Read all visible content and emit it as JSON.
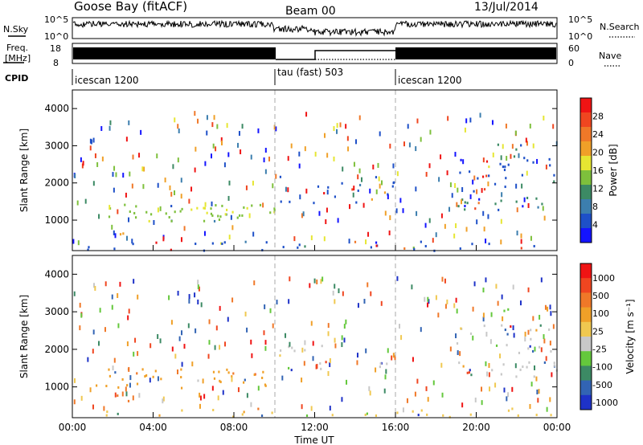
{
  "header": {
    "station": "Goose Bay (fitACF)",
    "beam": "Beam 00",
    "date": "13/Jul/2014"
  },
  "panels": {
    "nsky": {
      "left_label": "N.Sky",
      "right_label": "N.Search",
      "left_ticks": [
        "10^5",
        "10^0"
      ],
      "right_ticks": [
        "10^5",
        "10^0"
      ]
    },
    "freq": {
      "left_label_1": "Freq.",
      "left_label_2": "[MHz]",
      "left_ticks": [
        "18",
        "8"
      ],
      "right_ticks": [
        "60",
        "0"
      ],
      "right_label": "Nave"
    },
    "cpid": {
      "label": "CPID",
      "segments": [
        "icescan 1200",
        "tau (fast) 503",
        "icescan 1200"
      ]
    }
  },
  "chart_data": [
    {
      "type": "heatmap",
      "name": "power",
      "ylabel": "Slant Range [km]",
      "x_hours": [
        0,
        4,
        8,
        12,
        16,
        20,
        24
      ],
      "xticklabels": [
        "",
        "",
        "",
        "",
        "",
        "",
        ""
      ],
      "ylim": [
        180,
        4500
      ],
      "yticks": [
        1000,
        2000,
        3000,
        4000
      ],
      "colorbar": {
        "label": "Power [dB]",
        "ticks": [
          "4",
          "8",
          "12",
          "16",
          "20",
          "24",
          "28"
        ],
        "colors": [
          "#1414ff",
          "#1e50c8",
          "#3c7eae",
          "#3c8a64",
          "#7ec03c",
          "#e6e632",
          "#f0a028",
          "#f07828",
          "#f04620",
          "#f01414"
        ]
      },
      "mode_boundaries_hours": [
        10,
        16
      ],
      "scatter_regions": [
        {
          "t": [
            1.0,
            10.0
          ],
          "r": [
            1000,
            1500
          ],
          "dominant": "#7ec03c",
          "density": 0.55
        },
        {
          "t": [
            5.5,
            8.5
          ],
          "r": [
            1150,
            1450
          ],
          "dominant": "#e6e632",
          "density": 0.45
        },
        {
          "t": [
            2.0,
            3.0
          ],
          "r": [
            650,
            800
          ],
          "dominant": "#f0a028",
          "density": 0.6
        },
        {
          "t": [
            0,
            24
          ],
          "r": [
            200,
            450
          ],
          "dominant": "#1e50c8",
          "density": 0.35
        },
        {
          "t": [
            10,
            16
          ],
          "r": [
            1400,
            2200
          ],
          "dominant": "#1e50c8",
          "density": 0.25
        },
        {
          "t": [
            19,
            24
          ],
          "r": [
            1300,
            1700
          ],
          "dominant": "#3c8a64",
          "density": 0.55
        },
        {
          "t": [
            19,
            24
          ],
          "r": [
            1800,
            2700
          ],
          "dominant": "#1e50c8",
          "density": 0.35
        },
        {
          "t": [
            21,
            23.5
          ],
          "r": [
            2700,
            3300
          ],
          "dominant": "#1e50c8",
          "density": 0.2
        }
      ]
    },
    {
      "type": "heatmap",
      "name": "velocity",
      "ylabel": "Slant Range [km]",
      "x_hours": [
        0,
        4,
        8,
        12,
        16,
        20,
        24
      ],
      "xticklabels": [
        "00:00",
        "04:00",
        "08:00",
        "12:00",
        "16:00",
        "20:00",
        "00:00"
      ],
      "xlabel": "Time UT",
      "ylim": [
        180,
        4500
      ],
      "yticks": [
        1000,
        2000,
        3000,
        4000
      ],
      "colorbar": {
        "label": "Velocity [m s⁻¹]",
        "ticks": [
          "1000",
          "500",
          "100",
          "25",
          "-25",
          "-100",
          "-500",
          "-1000"
        ],
        "colors": [
          "#1e32c8",
          "#3264b4",
          "#3c8a64",
          "#64c83c",
          "#c8c8c8",
          "#f0c850",
          "#f0a028",
          "#f07828",
          "#f04620",
          "#f01414"
        ]
      },
      "mode_boundaries_hours": [
        10,
        16
      ],
      "scatter_regions": [
        {
          "t": [
            1.0,
            10.0
          ],
          "r": [
            1000,
            1500
          ],
          "dominant": "#f0a028",
          "density": 0.5
        },
        {
          "t": [
            2.0,
            3.0
          ],
          "r": [
            650,
            800
          ],
          "dominant": "#f07828",
          "density": 0.6
        },
        {
          "t": [
            0,
            24
          ],
          "r": [
            200,
            450
          ],
          "dominant": "#f0c850",
          "density": 0.3
        },
        {
          "t": [
            10,
            16
          ],
          "r": [
            1400,
            2200
          ],
          "dominant": "#c8c8c8",
          "density": 0.2
        },
        {
          "t": [
            19,
            24
          ],
          "r": [
            1300,
            1700
          ],
          "dominant": "#c8c8c8",
          "density": 0.6
        },
        {
          "t": [
            19,
            24
          ],
          "r": [
            1800,
            2700
          ],
          "dominant": "#c8c8c8",
          "density": 0.3
        },
        {
          "t": [
            21,
            22
          ],
          "r": [
            3050,
            3200
          ],
          "dominant": "#64c83c",
          "density": 0.7
        }
      ]
    }
  ]
}
